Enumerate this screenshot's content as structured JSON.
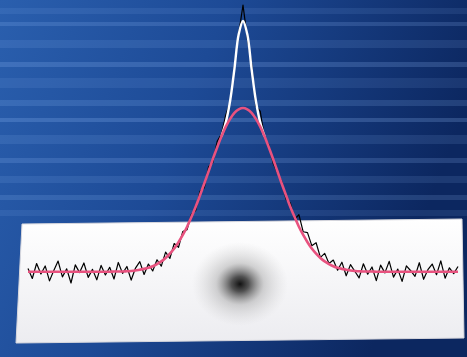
{
  "chart_data": {
    "type": "line",
    "tick_labels": false,
    "x": [
      0,
      1,
      2,
      3,
      4,
      5,
      6,
      7,
      8,
      9,
      10,
      11,
      12,
      13,
      14,
      15,
      16,
      17,
      18,
      19,
      20,
      21,
      22,
      23,
      24,
      25,
      26,
      27,
      28,
      29,
      30,
      31,
      32,
      33,
      34,
      35,
      36,
      37,
      38,
      39,
      40,
      41,
      42,
      43,
      44,
      45,
      46,
      47,
      48,
      49,
      50,
      51,
      52,
      53,
      54,
      55,
      56,
      57,
      58,
      59,
      60,
      61,
      62,
      63,
      64,
      65,
      66,
      67,
      68,
      69,
      70,
      71,
      72,
      73,
      74,
      75,
      76,
      77,
      78,
      79,
      80,
      81,
      82,
      83,
      84,
      85,
      86,
      87,
      88,
      89,
      90,
      91,
      92,
      93,
      94,
      95,
      96,
      97,
      98,
      99,
      100
    ],
    "series": [
      {
        "color": "#000000",
        "values": [
          1.2,
          -2.5,
          3.1,
          -0.8,
          2.2,
          -3.4,
          0.5,
          4.0,
          -1.9,
          1.1,
          -4.2,
          2.6,
          -0.3,
          3.3,
          -2.1,
          0.9,
          -3.0,
          2.4,
          -1.2,
          1.7,
          -2.7,
          3.5,
          -0.6,
          2.0,
          -3.1,
          1.4,
          3.8,
          -1.0,
          2.9,
          0.3,
          4.5,
          2.1,
          7.4,
          5.0,
          10.6,
          9.2,
          15.1,
          15.8,
          21.6,
          23.0,
          30.2,
          31.5,
          39.4,
          41.0,
          48.9,
          51.7,
          58.8,
          63.5,
          77.0,
          89.2,
          100,
          87.5,
          78.1,
          62.0,
          60.2,
          50.3,
          47.6,
          40.8,
          37.1,
          33.9,
          27.2,
          25.8,
          19.6,
          21.4,
          15.0,
          14.7,
          9.8,
          10.9,
          5.4,
          6.9,
          3.1,
          4.4,
          0.6,
          3.6,
          -1.5,
          2.7,
          0.2,
          -2.3,
          3.0,
          -0.9,
          1.8,
          -3.3,
          2.5,
          -0.4,
          3.9,
          -2.0,
          1.0,
          -3.6,
          2.2,
          0.4,
          -1.7,
          3.4,
          -2.8,
          0.8,
          2.9,
          -1.1,
          4.1,
          -2.4,
          1.5,
          -0.7,
          2.0
        ]
      },
      {
        "color": "#ffffff",
        "values": [
          null,
          null,
          null,
          null,
          null,
          null,
          null,
          null,
          null,
          null,
          null,
          null,
          null,
          null,
          null,
          null,
          null,
          null,
          null,
          null,
          null,
          null,
          null,
          null,
          null,
          null,
          null,
          null,
          null,
          null,
          null,
          null,
          null,
          null,
          null,
          null,
          null,
          null,
          null,
          null,
          null,
          null,
          null,
          null,
          null,
          50.8,
          56,
          64,
          76,
          89,
          94,
          89,
          76,
          64,
          56,
          50.8,
          null,
          null,
          null,
          null,
          null,
          null,
          null,
          null,
          null,
          null,
          null,
          null,
          null,
          null,
          null,
          null,
          null,
          null,
          null,
          null,
          null,
          null,
          null,
          null,
          null,
          null,
          null,
          null,
          null,
          null,
          null,
          null,
          null,
          null,
          null,
          null,
          null,
          null,
          null,
          null,
          null,
          null,
          null,
          null,
          null
        ]
      },
      {
        "color": "#e8527f",
        "values": [
          0,
          0,
          0,
          0,
          0,
          0,
          0,
          0,
          0,
          0,
          0,
          0,
          0,
          0,
          0,
          0,
          0,
          0,
          0,
          0,
          0.1,
          0.1,
          0.1,
          0.2,
          0.3,
          0.5,
          0.8,
          1.1,
          1.5,
          2.1,
          2.9,
          3.9,
          5.2,
          6.8,
          8.7,
          11.1,
          13.8,
          16.9,
          20.5,
          24.4,
          28.7,
          33.1,
          37.7,
          42.3,
          46.7,
          50.8,
          54.4,
          57.3,
          59.6,
          60.9,
          61.4,
          60.9,
          59.6,
          57.3,
          54.4,
          50.8,
          46.7,
          42.3,
          37.7,
          33.1,
          28.7,
          24.4,
          20.5,
          16.9,
          13.8,
          11.1,
          8.7,
          6.8,
          5.2,
          3.9,
          2.9,
          2.1,
          1.5,
          1.1,
          0.8,
          0.5,
          0.3,
          0.2,
          0.1,
          0.1,
          0.1,
          0,
          0,
          0,
          0,
          0,
          0,
          0,
          0,
          0,
          0,
          0,
          0,
          0,
          0,
          0,
          0,
          0,
          0,
          0,
          0
        ]
      }
    ]
  }
}
